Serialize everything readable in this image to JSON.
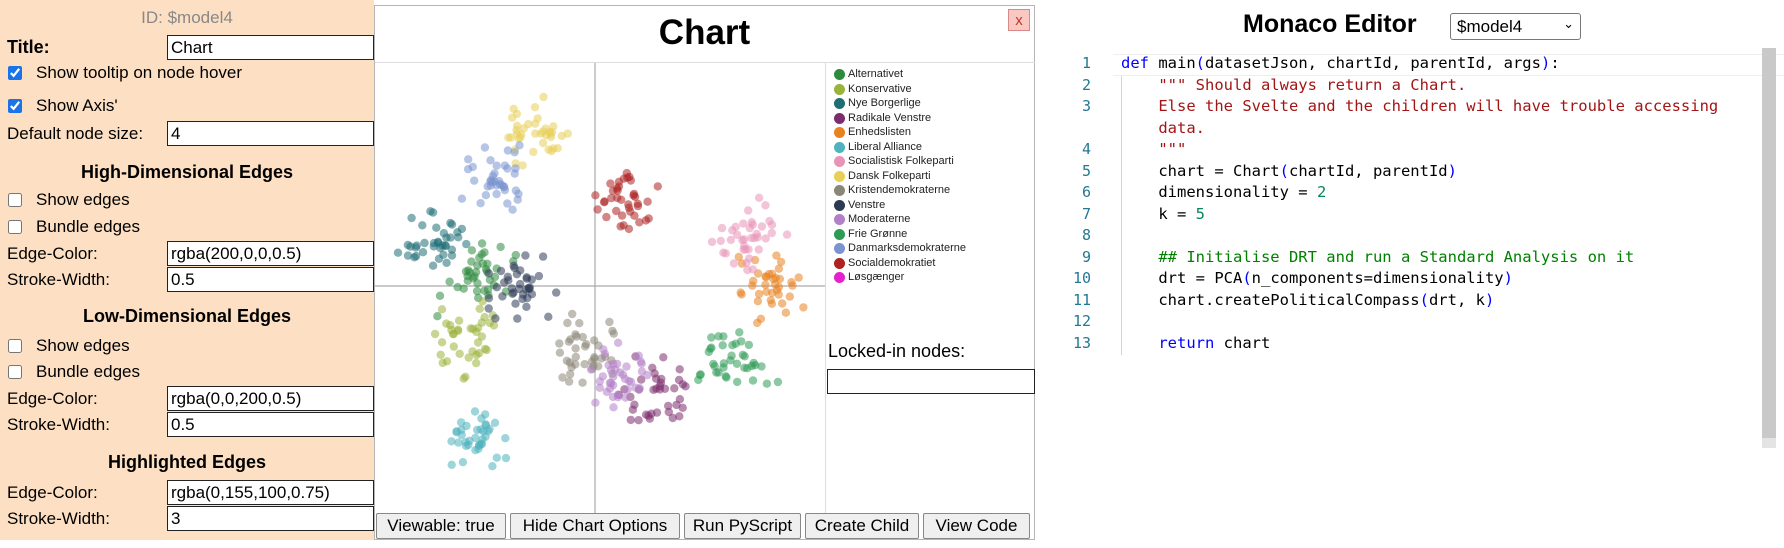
{
  "options": {
    "id_label": "ID: $model4",
    "title_label": "Title:",
    "title_value": "Chart",
    "show_tooltip_label": "Show tooltip on node hover",
    "show_axis_label": "Show Axis'",
    "default_node_size_label": "Default node size:",
    "default_node_size_value": "4",
    "high_dim": {
      "heading": "High-Dimensional Edges",
      "show_edges_label": "Show edges",
      "bundle_edges_label": "Bundle edges",
      "edge_color_label": "Edge-Color:",
      "edge_color_value": "rgba(200,0,0,0.5)",
      "stroke_width_label": "Stroke-Width:",
      "stroke_width_value": "0.5"
    },
    "low_dim": {
      "heading": "Low-Dimensional Edges",
      "show_edges_label": "Show edges",
      "bundle_edges_label": "Bundle edges",
      "edge_color_label": "Edge-Color:",
      "edge_color_value": "rgba(0,0,200,0.5)",
      "stroke_width_label": "Stroke-Width:",
      "stroke_width_value": "0.5"
    },
    "highlighted": {
      "heading": "Highlighted Edges",
      "edge_color_label": "Edge-Color:",
      "edge_color_value": "rgba(0,155,100,0.75)",
      "stroke_width_label": "Stroke-Width:",
      "stroke_width_value": "3"
    }
  },
  "chart": {
    "title": "Chart",
    "close_label": "x",
    "locked_label": "Locked-in nodes:",
    "buttons": {
      "viewable": "Viewable: true",
      "hide_options": "Hide Chart Options",
      "run_pyscript": "Run PyScript",
      "create_child": "Create Child",
      "view_code": "View Code"
    }
  },
  "chart_data": {
    "type": "scatter",
    "title": "Chart",
    "legend_position": "right",
    "axes_visible": true,
    "series": [
      {
        "name": "Alternativet",
        "color": "#2e8b3e",
        "center": [
          -0.55,
          0.05
        ]
      },
      {
        "name": "Konservative",
        "color": "#9ab33a",
        "center": [
          -0.6,
          -0.25
        ]
      },
      {
        "name": "Nye Borgerlige",
        "color": "#1f6e74",
        "center": [
          -0.75,
          0.2
        ]
      },
      {
        "name": "Radikale Venstre",
        "color": "#7b2d6e",
        "center": [
          0.3,
          -0.5
        ]
      },
      {
        "name": "Enhedslisten",
        "color": "#e8821f",
        "center": [
          0.8,
          0.0
        ]
      },
      {
        "name": "Liberal Alliance",
        "color": "#4eb3bd",
        "center": [
          -0.55,
          -0.72
        ]
      },
      {
        "name": "Socialistisk Folkeparti",
        "color": "#e993b8",
        "center": [
          0.72,
          0.22
        ]
      },
      {
        "name": "Dansk Folkeparti",
        "color": "#e8cf5a",
        "center": [
          -0.3,
          0.7
        ]
      },
      {
        "name": "Kristendemokraterne",
        "color": "#8a8777",
        "center": [
          -0.05,
          -0.3
        ]
      },
      {
        "name": "Venstre",
        "color": "#2d3a55",
        "center": [
          -0.35,
          0.0
        ]
      },
      {
        "name": "Moderaterne",
        "color": "#b27fc8",
        "center": [
          0.1,
          -0.45
        ]
      },
      {
        "name": "Frie Grønne",
        "color": "#2e9a55",
        "center": [
          0.65,
          -0.35
        ]
      },
      {
        "name": "Danmarksdemokraterne",
        "color": "#7a94cf",
        "center": [
          -0.45,
          0.5
        ]
      },
      {
        "name": "Socialdemokratiet",
        "color": "#ad2222",
        "center": [
          0.15,
          0.4
        ]
      },
      {
        "name": "Løsgænger",
        "color": "#e81fcf",
        "center": [
          0.0,
          0.0
        ]
      }
    ]
  },
  "editor": {
    "title": "Monaco Editor",
    "selected_model": "$model4",
    "line_numbers": [
      "1",
      "2",
      "3",
      "",
      "4",
      "5",
      "6",
      "7",
      "8",
      "9",
      "10",
      "11",
      "12",
      "13"
    ],
    "lines": [
      "def main(datasetJson, chartId, parentId, args):",
      "    \"\"\" Should always return a Chart.",
      "    Else the Svelte and the children will have trouble accessing",
      "    data.",
      "    \"\"\"",
      "    chart = Chart(chartId, parentId)",
      "    dimensionality = 2",
      "    k = 5",
      "",
      "    ## Initialise DRT and run a Standard Analysis on it",
      "    drt = PCA(n_components=dimensionality)",
      "    chart.createPoliticalCompass(drt, k)",
      "",
      "    return chart"
    ]
  }
}
